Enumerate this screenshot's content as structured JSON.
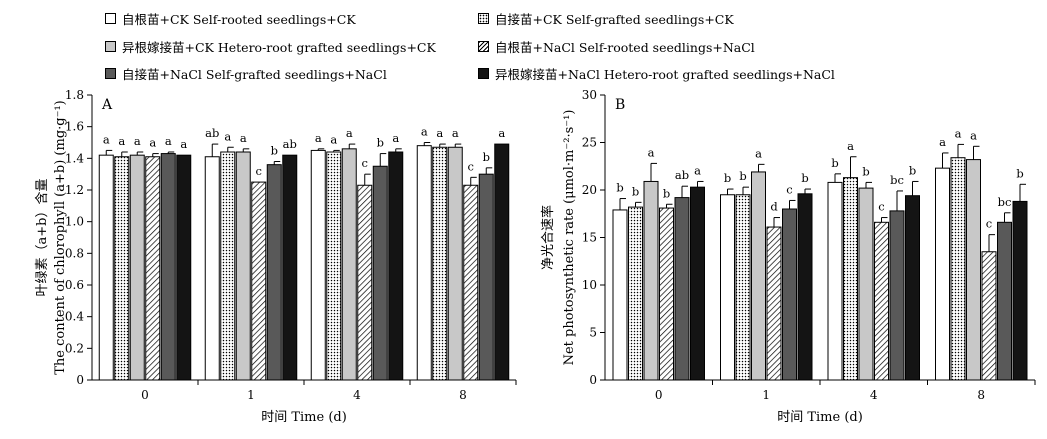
{
  "legend": [
    {
      "label": "自根苗+CK  Self-rooted seedlings+CK",
      "fill": "white"
    },
    {
      "label": "自接苗+CK  Self-grafted seedlings+CK",
      "fill": "dots"
    },
    {
      "label": "异根嫁接苗+CK  Hetero-root grafted seedlings+CK",
      "fill": "lightgray"
    },
    {
      "label": "自根苗+NaCl  Self-rooted seedlings+NaCl",
      "fill": "hatch"
    },
    {
      "label": "自接苗+NaCl  Self-grafted seedlings+NaCl",
      "fill": "darkgray"
    },
    {
      "label": "异根嫁接苗+NaCl  Hetero-root grafted seedlings+NaCl",
      "fill": "black"
    }
  ],
  "colors": {
    "white": "#ffffff",
    "lightgray": "#c8c8c8",
    "darkgray": "#595959",
    "black": "#141414",
    "axis": "#000000"
  },
  "chart_data": [
    {
      "type": "bar",
      "panel": "A",
      "ylabel_cn": "叶绿素（a+b）含量",
      "ylabel_en": "The content of chlorophyll (a+b) (mg·g⁻¹)",
      "xlabel": "时间 Time (d)",
      "categories": [
        "0",
        "1",
        "4",
        "8"
      ],
      "ylim": [
        0,
        1.8
      ],
      "yticks": [
        "0",
        "0.2",
        "0.4",
        "0.6",
        "0.8",
        "1.0",
        "1.2",
        "1.4",
        "1.6",
        "1.8"
      ],
      "series": [
        {
          "name": "自根苗+CK  Self-rooted seedlings+CK",
          "values": [
            1.42,
            1.41,
            1.45,
            1.48
          ],
          "errors": [
            0.03,
            0.08,
            0.01,
            0.02
          ],
          "letters": [
            "a",
            "ab",
            "a",
            "a"
          ]
        },
        {
          "name": "自接苗+CK  Self-grafted seedlings+CK",
          "values": [
            1.41,
            1.44,
            1.44,
            1.47
          ],
          "errors": [
            0.03,
            0.03,
            0.01,
            0.02
          ],
          "letters": [
            "a",
            "a",
            "a",
            "a"
          ]
        },
        {
          "name": "异根嫁接苗+CK  Hetero-root grafted seedlings+CK",
          "values": [
            1.42,
            1.44,
            1.46,
            1.47
          ],
          "errors": [
            0.02,
            0.02,
            0.03,
            0.02
          ],
          "letters": [
            "a",
            "a",
            "a",
            "a"
          ]
        },
        {
          "name": "自根苗+NaCl  Self-rooted seedlings+NaCl",
          "values": [
            1.41,
            1.25,
            1.23,
            1.23
          ],
          "errors": [
            0.02,
            0.0,
            0.07,
            0.05
          ],
          "letters": [
            "a",
            "c",
            "c",
            "c"
          ]
        },
        {
          "name": "自接苗+NaCl  Self-grafted seedlings+NaCl",
          "values": [
            1.43,
            1.36,
            1.35,
            1.3
          ],
          "errors": [
            0.01,
            0.02,
            0.08,
            0.04
          ],
          "letters": [
            "a",
            "b",
            "b",
            "b"
          ]
        },
        {
          "name": "异根嫁接苗+NaCl  Hetero-root grafted seedlings+NaCl",
          "values": [
            1.42,
            1.42,
            1.44,
            1.49
          ],
          "errors": [
            0.0,
            0.0,
            0.02,
            0.0
          ],
          "letters": [
            "a",
            "ab",
            "a",
            "a"
          ]
        }
      ]
    },
    {
      "type": "bar",
      "panel": "B",
      "ylabel_cn": "净光合速率",
      "ylabel_en": "Net photosynthetic rate (μmol·m⁻²·s⁻¹)",
      "xlabel": "时间 Time (d)",
      "categories": [
        "0",
        "1",
        "4",
        "8"
      ],
      "ylim": [
        0,
        30
      ],
      "yticks": [
        "0",
        "5",
        "10",
        "15",
        "20",
        "25",
        "30"
      ],
      "series": [
        {
          "name": "自根苗+CK  Self-rooted seedlings+CK",
          "values": [
            17.9,
            19.5,
            20.8,
            22.3
          ],
          "errors": [
            1.2,
            0.6,
            0.9,
            1.6
          ],
          "letters": [
            "b",
            "b",
            "b",
            "a"
          ]
        },
        {
          "name": "自接苗+CK  Self-grafted seedlings+CK",
          "values": [
            18.2,
            19.5,
            21.3,
            23.4
          ],
          "errors": [
            0.5,
            0.8,
            2.2,
            1.4
          ],
          "letters": [
            "b",
            "b",
            "a",
            "a"
          ]
        },
        {
          "name": "异根嫁接苗+CK  Hetero-root grafted seedlings+CK",
          "values": [
            20.9,
            21.9,
            20.2,
            23.2
          ],
          "errors": [
            1.9,
            0.8,
            0.6,
            1.4
          ],
          "letters": [
            "a",
            "a",
            "b",
            "a"
          ]
        },
        {
          "name": "自根苗+NaCl  Self-rooted seedlings+NaCl",
          "values": [
            18.1,
            16.1,
            16.6,
            13.5
          ],
          "errors": [
            0.4,
            1.0,
            0.5,
            1.8
          ],
          "letters": [
            "b",
            "d",
            "c",
            "c"
          ]
        },
        {
          "name": "自接苗+NaCl  Self-grafted seedlings+NaCl",
          "values": [
            19.2,
            18.0,
            17.8,
            16.6
          ],
          "errors": [
            1.2,
            0.9,
            2.1,
            1.0
          ],
          "letters": [
            "ab",
            "c",
            "bc",
            "bc"
          ]
        },
        {
          "name": "异根嫁接苗+NaCl  Hetero-root grafted seedlings+NaCl",
          "values": [
            20.3,
            19.6,
            19.4,
            18.8
          ],
          "errors": [
            0.6,
            0.5,
            1.5,
            1.8
          ],
          "letters": [
            "a",
            "b",
            "b",
            "b"
          ]
        }
      ]
    }
  ]
}
